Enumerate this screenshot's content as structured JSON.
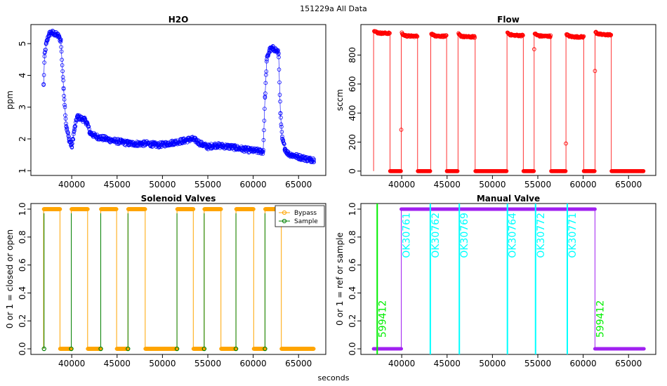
{
  "figure": {
    "title": "151229a   All Data",
    "xlabel": "seconds"
  },
  "chart_data": [
    {
      "type": "scatter",
      "title": "H2O",
      "xlabel": "",
      "ylabel": "ppm",
      "xlim": [
        35500,
        68000
      ],
      "ylim": [
        0.85,
        5.6
      ],
      "xticks": [
        40000,
        45000,
        50000,
        55000,
        60000,
        65000
      ],
      "xtick_labels": [
        "40000",
        "45000",
        "50000",
        "55000",
        "60000",
        "65000"
      ],
      "yticks": [
        1,
        2,
        3,
        4,
        5
      ],
      "ytick_labels": [
        "1",
        "2",
        "3",
        "4",
        "5"
      ],
      "color": "#0000ff",
      "series": [
        {
          "name": "H2O",
          "x": [
            36900,
            37000,
            37200,
            37500,
            37800,
            38200,
            38500,
            38800,
            39100,
            39400,
            39700,
            40000,
            40300,
            40600,
            41000,
            41400,
            41700,
            42000,
            42500,
            43000,
            43800,
            44500,
            45500,
            46500,
            47500,
            48500,
            49500,
            50500,
            51500,
            52500,
            53200,
            53700,
            54200,
            55000,
            55800,
            56500,
            57500,
            58500,
            59500,
            60500,
            61100,
            61300,
            61500,
            61800,
            62200,
            62500,
            62800,
            63000,
            63200,
            63500,
            63800,
            64200,
            64800,
            65500,
            66200,
            66700
          ],
          "values": [
            3.7,
            4.6,
            5.0,
            5.3,
            5.35,
            5.3,
            5.25,
            5.1,
            3.6,
            2.4,
            2.0,
            1.75,
            2.3,
            2.7,
            2.65,
            2.6,
            2.5,
            2.2,
            2.1,
            2.05,
            2.0,
            1.95,
            1.9,
            1.85,
            1.85,
            1.85,
            1.8,
            1.85,
            1.9,
            1.95,
            2.0,
            1.95,
            1.85,
            1.75,
            1.8,
            1.78,
            1.75,
            1.7,
            1.65,
            1.62,
            1.6,
            3.3,
            4.5,
            4.8,
            4.85,
            4.8,
            4.7,
            2.8,
            2.0,
            1.7,
            1.55,
            1.5,
            1.45,
            1.4,
            1.35,
            1.35
          ]
        }
      ]
    },
    {
      "type": "scatter",
      "title": "Flow",
      "xlabel": "",
      "ylabel": "sccm",
      "xlim": [
        35500,
        68000
      ],
      "ylim": [
        -30,
        1010
      ],
      "xticks": [
        40000,
        45000,
        50000,
        55000,
        60000,
        65000
      ],
      "xtick_labels": [
        "40000",
        "45000",
        "50000",
        "55000",
        "60000",
        "65000"
      ],
      "yticks": [
        0,
        200,
        400,
        600,
        800
      ],
      "ytick_labels": [
        "0",
        "200",
        "400",
        "600",
        "800"
      ],
      "color": "#ff0000",
      "high_segments": [
        [
          36900,
          38700
        ],
        [
          39950,
          41750
        ],
        [
          43200,
          44950
        ],
        [
          46200,
          48100
        ],
        [
          51600,
          53400
        ],
        [
          54600,
          56450
        ],
        [
          58100,
          60050
        ],
        [
          61300,
          63100
        ]
      ],
      "high_values": [
        950,
        930,
        930,
        925,
        935,
        930,
        925,
        940
      ],
      "low_value": 0,
      "x_end": 66700,
      "outliers": [
        {
          "x": 39950,
          "y": 285
        },
        {
          "x": 54600,
          "y": 840
        },
        {
          "x": 58100,
          "y": 190
        },
        {
          "x": 61300,
          "y": 690
        }
      ]
    },
    {
      "type": "line",
      "title": "Solenoid Valves",
      "xlabel": "",
      "ylabel": "0 or 1 = closed or open",
      "xlim": [
        35500,
        68000
      ],
      "ylim": [
        -0.04,
        1.04
      ],
      "xticks": [
        40000,
        45000,
        50000,
        55000,
        60000,
        65000
      ],
      "xtick_labels": [
        "40000",
        "45000",
        "50000",
        "55000",
        "60000",
        "65000"
      ],
      "yticks": [
        0.0,
        0.2,
        0.4,
        0.6,
        0.8,
        1.0
      ],
      "ytick_labels": [
        "0.0",
        "0.2",
        "0.4",
        "0.6",
        "0.8",
        "1.0"
      ],
      "legend": {
        "position": "top-right",
        "entries": [
          {
            "label": "Bypass",
            "color": "#ffa500"
          },
          {
            "label": "Sample",
            "color": "#008000"
          }
        ]
      },
      "bypass_high_segments": [
        [
          36900,
          38700
        ],
        [
          39950,
          41750
        ],
        [
          43200,
          44950
        ],
        [
          46200,
          48100
        ],
        [
          51600,
          53400
        ],
        [
          54600,
          56450
        ],
        [
          58100,
          60050
        ],
        [
          61300,
          63100
        ]
      ],
      "sample_spikes": [
        36950,
        39950,
        43200,
        46200,
        51600,
        54600,
        58100,
        61300
      ],
      "x_end": 66700
    },
    {
      "type": "line",
      "title": "Manual Valve",
      "xlabel": "",
      "ylabel": "0 or 1 = ref or sample",
      "xlim": [
        35500,
        68000
      ],
      "ylim": [
        -0.04,
        1.04
      ],
      "xticks": [
        40000,
        45000,
        50000,
        55000,
        60000,
        65000
      ],
      "xtick_labels": [
        "40000",
        "45000",
        "50000",
        "55000",
        "60000",
        "65000"
      ],
      "yticks": [
        0.0,
        0.2,
        0.4,
        0.6,
        0.8,
        1.0
      ],
      "ytick_labels": [
        "0.0",
        "0.2",
        "0.4",
        "0.6",
        "0.8",
        "1.0"
      ],
      "color": "#a020f0",
      "segments": [
        {
          "x0": 36900,
          "x1": 39950,
          "y": 0
        },
        {
          "x0": 39950,
          "x1": 61300,
          "y": 1
        },
        {
          "x0": 61300,
          "x1": 66700,
          "y": 0
        }
      ],
      "vlines": [
        {
          "x": 37300,
          "label": "599412",
          "color": "#00ee00",
          "label_y": 0.08
        },
        {
          "x": 43150,
          "label": "OK30762",
          "color": "#00ffff",
          "label_y": 0.65
        },
        {
          "x": 46350,
          "label": "OK30769",
          "color": "#00ffff",
          "label_y": 0.65
        },
        {
          "x": 51650,
          "label": "OK30764",
          "color": "#00ffff",
          "label_y": 0.65
        },
        {
          "x": 54750,
          "label": "OK30772",
          "color": "#00ffff",
          "label_y": 0.65
        },
        {
          "x": 58250,
          "label": "OK30771",
          "color": "#00ffff",
          "label_y": 0.65
        }
      ],
      "extra_labels": [
        {
          "x": 39950,
          "label": "OK30761",
          "color": "#00ffff",
          "label_y": 0.65
        },
        {
          "x": 61300,
          "label": "599412",
          "color": "#00ee00",
          "label_y": 0.08
        }
      ]
    }
  ]
}
